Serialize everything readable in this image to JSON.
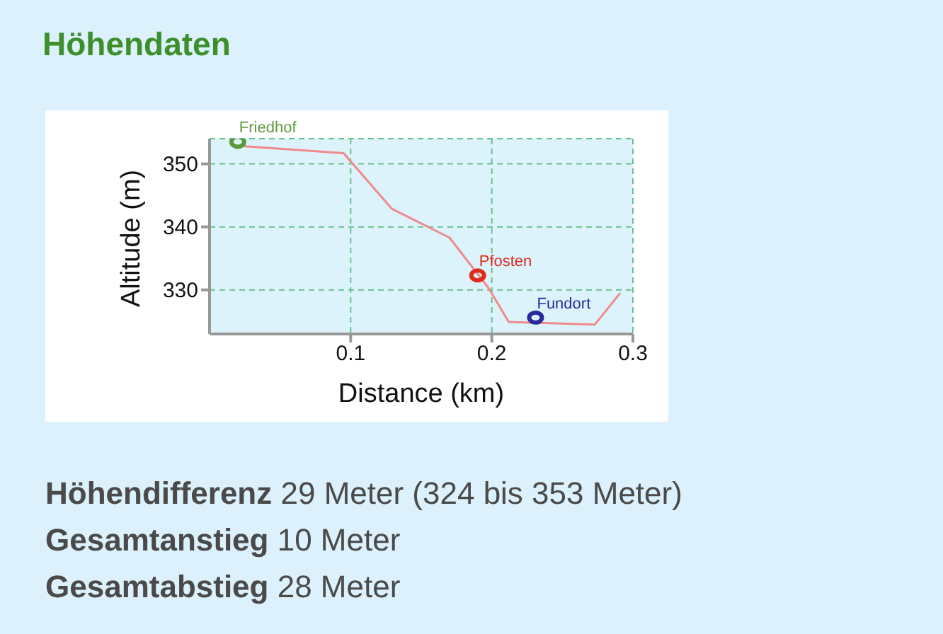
{
  "chart_data": {
    "type": "line",
    "title": "Höhendaten",
    "xlabel": "Distance (km)",
    "ylabel": "Altitude (m)",
    "xlim": [
      0,
      0.3
    ],
    "xticks": [
      0.1,
      0.2,
      0.3
    ],
    "ylim": [
      323,
      354
    ],
    "yticks": [
      330,
      340,
      350
    ],
    "grid": true,
    "legend": false,
    "series": [
      {
        "type": "scatter",
        "name": "Friedhof",
        "color": "#5a9a3a",
        "marker": "circle",
        "x": [
          0.02
        ],
        "values": [
          353.5
        ]
      },
      {
        "type": "scatter",
        "name": "Pfosten",
        "color": "#e02a1a",
        "marker": "circle",
        "x": [
          0.19
        ],
        "values": [
          332.3
        ]
      },
      {
        "type": "scatter",
        "name": "Fundort",
        "color": "#2a2a9a",
        "marker": "circle",
        "x": [
          0.231
        ],
        "values": [
          325.6
        ]
      },
      {
        "type": "line",
        "color": "#f08a8a",
        "marker": "none",
        "x": [
          0.018,
          0.095,
          0.129,
          0.17,
          0.198,
          0.212,
          0.273,
          0.291
        ],
        "values": [
          352.9,
          351.7,
          342.9,
          338.3,
          330.2,
          324.9,
          324.5,
          329.5
        ]
      }
    ],
    "annotations": [
      "Höhendifferenz 29 Meter (324 bis 353 Meter)",
      "Gesamtanstieg 10 Meter",
      "Gesamtabstieg 28 Meter"
    ]
  }
}
